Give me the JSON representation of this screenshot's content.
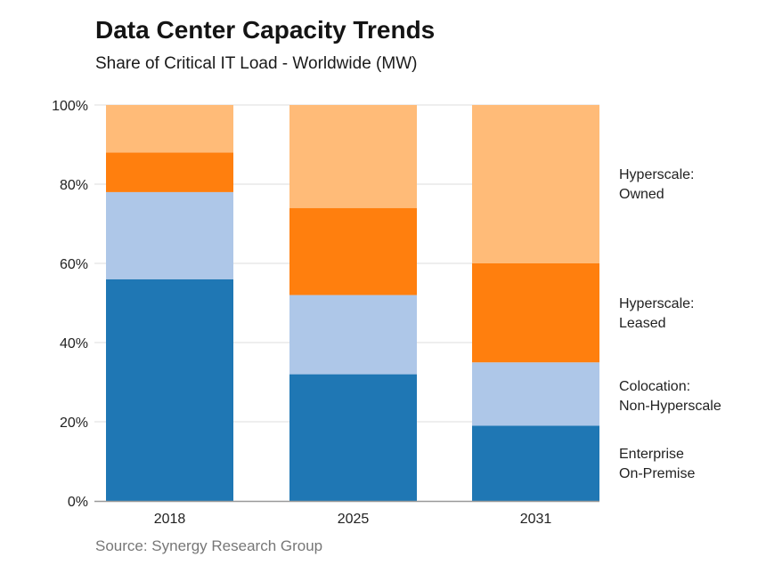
{
  "chart_data": {
    "type": "bar",
    "stacked": true,
    "title": "Data Center Capacity Trends",
    "subtitle": "Share of Critical IT Load - Worldwide (MW)",
    "source": "Source: Synergy Research Group",
    "xlabel": "",
    "ylabel": "",
    "ylim": [
      0,
      100
    ],
    "yticks": [
      "0%",
      "20%",
      "40%",
      "60%",
      "80%",
      "100%"
    ],
    "ytick_values": [
      0,
      20,
      40,
      60,
      80,
      100
    ],
    "grid": true,
    "legend_placement": "right",
    "categories": [
      "2018",
      "2025",
      "2031"
    ],
    "series": [
      {
        "name": "Enterprise On-Premise",
        "label_lines": [
          "Enterprise",
          "On-Premise"
        ],
        "color": "#1f77b4",
        "values": [
          56,
          32,
          19
        ]
      },
      {
        "name": "Colocation: Non-Hyperscale",
        "label_lines": [
          "Colocation:",
          "Non-Hyperscale"
        ],
        "color": "#aec7e8",
        "values": [
          22,
          20,
          16
        ]
      },
      {
        "name": "Hyperscale: Leased",
        "label_lines": [
          "Hyperscale:",
          "Leased"
        ],
        "color": "#ff7f0e",
        "values": [
          10,
          22,
          25
        ]
      },
      {
        "name": "Hyperscale: Owned",
        "label_lines": [
          "Hyperscale:",
          "Owned"
        ],
        "color": "#ffbb78",
        "values": [
          12,
          26,
          40
        ]
      }
    ]
  }
}
